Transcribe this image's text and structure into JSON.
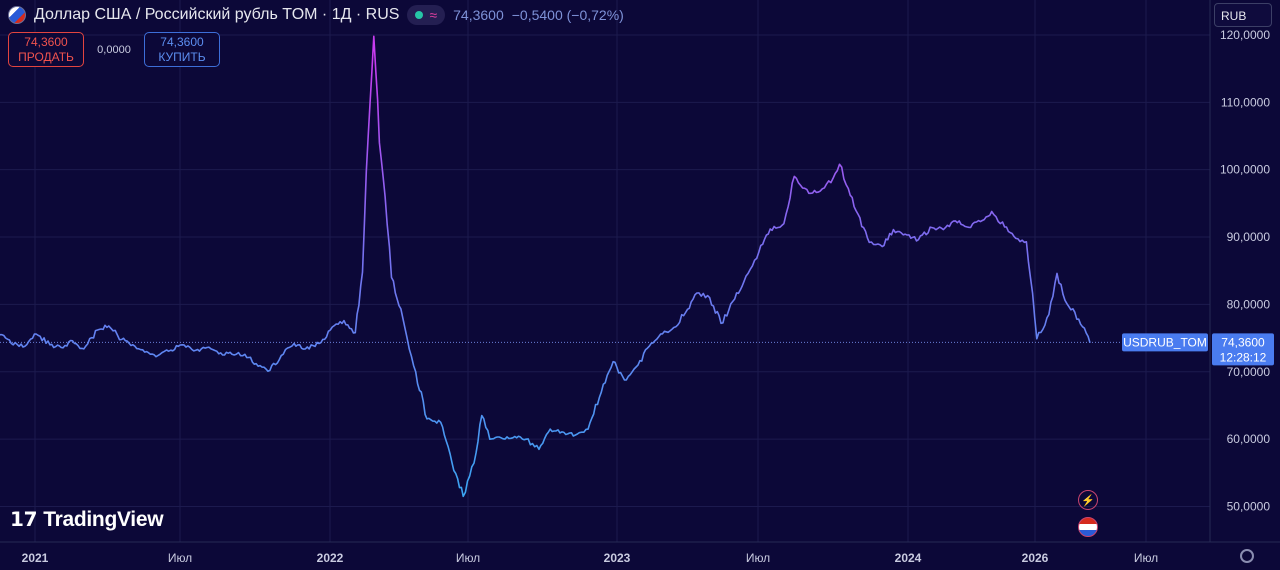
{
  "header": {
    "title": "Доллар США / Российский рубль TOM · 1Д · RUS",
    "wave_icon": "≈",
    "last": "74,3600",
    "change": "−0,5400 (−0,72%)"
  },
  "trade": {
    "sell_price": "74,3600",
    "sell_label": "ПРОДАТЬ",
    "spread": "0,0000",
    "buy_price": "74,3600",
    "buy_label": "КУПИТЬ"
  },
  "currency_button": "RUB",
  "brand": "TradingView",
  "icons": {
    "flag": "us-ru-flag-icon",
    "status": "market-status-icon",
    "lightning": "lightning-icon",
    "flag_event": "us-flag-icon",
    "settings": "gear-icon"
  },
  "colors": {
    "background": "#0c0838",
    "line_top": "#c83cf0",
    "line_mid": "#7a6ef0",
    "line_bottom": "#3aa6f2",
    "price_label": "#4a7cf0",
    "sell": "#f0534e",
    "buy": "#5c8ef0"
  },
  "chart_data": {
    "type": "line",
    "series": [
      {
        "name": "USDRUB_TOM",
        "points": [
          [
            "2020-12-01",
            75.5
          ],
          [
            "2020-12-15",
            74.2
          ],
          [
            "2021-01-01",
            73.8
          ],
          [
            "2021-01-15",
            75.6
          ],
          [
            "2021-02-01",
            74.0
          ],
          [
            "2021-02-15",
            73.6
          ],
          [
            "2021-03-01",
            74.6
          ],
          [
            "2021-03-15",
            73.4
          ],
          [
            "2021-04-01",
            76.2
          ],
          [
            "2021-04-15",
            76.8
          ],
          [
            "2021-05-01",
            74.8
          ],
          [
            "2021-05-15",
            74.0
          ],
          [
            "2021-06-01",
            73.0
          ],
          [
            "2021-06-15",
            72.4
          ],
          [
            "2021-07-01",
            73.2
          ],
          [
            "2021-07-15",
            74.0
          ],
          [
            "2021-08-01",
            73.2
          ],
          [
            "2021-08-15",
            73.6
          ],
          [
            "2021-09-01",
            72.8
          ],
          [
            "2021-09-15",
            72.6
          ],
          [
            "2021-10-01",
            72.6
          ],
          [
            "2021-10-15",
            71.2
          ],
          [
            "2021-11-01",
            70.2
          ],
          [
            "2021-11-15",
            72.4
          ],
          [
            "2021-12-01",
            74.2
          ],
          [
            "2021-12-15",
            73.4
          ],
          [
            "2022-01-01",
            74.2
          ],
          [
            "2022-01-15",
            76.2
          ],
          [
            "2022-02-01",
            77.6
          ],
          [
            "2022-02-15",
            75.8
          ],
          [
            "2022-02-24",
            84.8
          ],
          [
            "2022-03-03",
            105.0
          ],
          [
            "2022-03-10",
            119.8
          ],
          [
            "2022-03-17",
            104.0
          ],
          [
            "2022-03-24",
            96.0
          ],
          [
            "2022-04-01",
            84.0
          ],
          [
            "2022-04-15",
            78.0
          ],
          [
            "2022-05-01",
            70.0
          ],
          [
            "2022-05-15",
            63.0
          ],
          [
            "2022-06-01",
            62.5
          ],
          [
            "2022-06-15",
            56.5
          ],
          [
            "2022-06-29",
            51.5
          ],
          [
            "2022-07-15",
            58.0
          ],
          [
            "2022-07-22",
            63.5
          ],
          [
            "2022-08-01",
            60.0
          ],
          [
            "2022-08-15",
            60.2
          ],
          [
            "2022-09-01",
            60.4
          ],
          [
            "2022-09-15",
            60.0
          ],
          [
            "2022-10-01",
            58.5
          ],
          [
            "2022-10-15",
            61.5
          ],
          [
            "2022-11-01",
            61.0
          ],
          [
            "2022-11-15",
            60.6
          ],
          [
            "2022-12-01",
            61.5
          ],
          [
            "2022-12-15",
            66.2
          ],
          [
            "2023-01-01",
            71.5
          ],
          [
            "2023-01-15",
            68.8
          ],
          [
            "2023-02-01",
            71.0
          ],
          [
            "2023-02-15",
            73.8
          ],
          [
            "2023-03-01",
            75.6
          ],
          [
            "2023-03-15",
            76.3
          ],
          [
            "2023-04-01",
            78.8
          ],
          [
            "2023-04-15",
            81.7
          ],
          [
            "2023-05-01",
            81.0
          ],
          [
            "2023-05-15",
            77.2
          ],
          [
            "2023-06-01",
            80.8
          ],
          [
            "2023-06-15",
            84.2
          ],
          [
            "2023-07-01",
            87.8
          ],
          [
            "2023-07-15",
            91.2
          ],
          [
            "2023-08-01",
            92.0
          ],
          [
            "2023-08-14",
            99.0
          ],
          [
            "2023-09-01",
            96.5
          ],
          [
            "2023-09-15",
            96.8
          ],
          [
            "2023-10-01",
            98.7
          ],
          [
            "2023-10-09",
            100.8
          ],
          [
            "2023-10-20",
            97.2
          ],
          [
            "2023-11-01",
            93.4
          ],
          [
            "2023-11-15",
            89.2
          ],
          [
            "2023-12-01",
            88.6
          ],
          [
            "2023-12-15",
            91.1
          ],
          [
            "2024-01-01",
            90.3
          ],
          [
            "2024-01-15",
            89.6
          ],
          [
            "2024-02-01",
            91.4
          ],
          [
            "2024-02-15",
            91.1
          ],
          [
            "2024-03-01",
            92.4
          ],
          [
            "2024-03-15",
            91.5
          ],
          [
            "2024-04-01",
            92.3
          ],
          [
            "2024-04-15",
            93.8
          ],
          [
            "2024-05-01",
            91.5
          ],
          [
            "2024-05-15",
            89.8
          ],
          [
            "2024-05-28",
            89.3
          ],
          [
            "2024-06-10",
            74.9
          ],
          [
            "2024-06-25",
            78.5
          ],
          [
            "2024-07-05",
            84.6
          ],
          [
            "2024-07-15",
            80.6
          ],
          [
            "2024-08-01",
            77.8
          ],
          [
            "2024-08-15",
            74.3
          ]
        ]
      }
    ],
    "x_ticks": [
      "2021",
      "Июл",
      "2022",
      "Июл",
      "2023",
      "Июл",
      "2024",
      "2026",
      "Июл"
    ],
    "y_ticks": [
      "50,0000",
      "60,0000",
      "70,0000",
      "80,0000",
      "90,0000",
      "100,0000",
      "110,0000",
      "120,0000"
    ],
    "ylim": [
      48,
      124
    ],
    "last_value": 74.36,
    "price_label": "74,3600",
    "countdown": "12:28:12",
    "symbol_label": "USDRUB_TOM",
    "grid": true
  }
}
